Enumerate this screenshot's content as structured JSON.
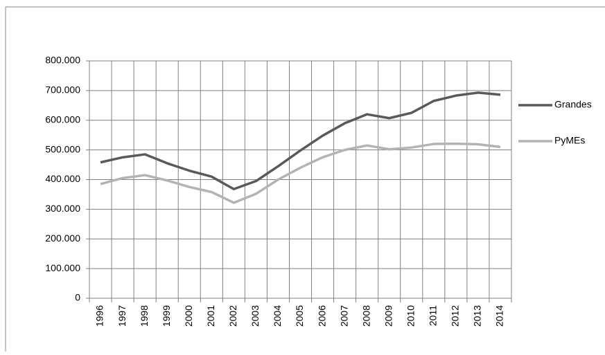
{
  "chart_data": {
    "type": "line",
    "categories": [
      "1996",
      "1997",
      "1998",
      "1999",
      "2000",
      "2001",
      "2002",
      "2003",
      "2004",
      "2005",
      "2006",
      "2007",
      "2008",
      "2009",
      "2010",
      "2011",
      "2012",
      "2013",
      "2014"
    ],
    "series": [
      {
        "name": "Grandes",
        "color": "#595959",
        "values": [
          458000,
          475000,
          485000,
          455000,
          430000,
          410000,
          368000,
          395000,
          445000,
          498000,
          548000,
          590000,
          620000,
          607000,
          625000,
          665000,
          683000,
          693000,
          686000
        ]
      },
      {
        "name": "PyMEs",
        "color": "#b3b3b3",
        "values": [
          385000,
          405000,
          415000,
          397000,
          375000,
          358000,
          322000,
          352000,
          400000,
          440000,
          475000,
          500000,
          515000,
          502000,
          508000,
          520000,
          521000,
          519000,
          510000
        ]
      }
    ],
    "ylim": [
      0,
      800000
    ],
    "yticks": [
      0,
      {
        "value": 100000,
        "label": "100.000"
      },
      {
        "value": 200000,
        "label": "200.000"
      },
      {
        "value": 300000,
        "label": "300.000"
      },
      {
        "value": 400000,
        "label": "400.000"
      },
      {
        "value": 500000,
        "label": "500.000"
      },
      {
        "value": 600000,
        "label": "600.000"
      },
      {
        "value": 700000,
        "label": "700.000"
      },
      {
        "value": 800000,
        "label": "800.000"
      }
    ],
    "grid": true,
    "legend": "right"
  }
}
